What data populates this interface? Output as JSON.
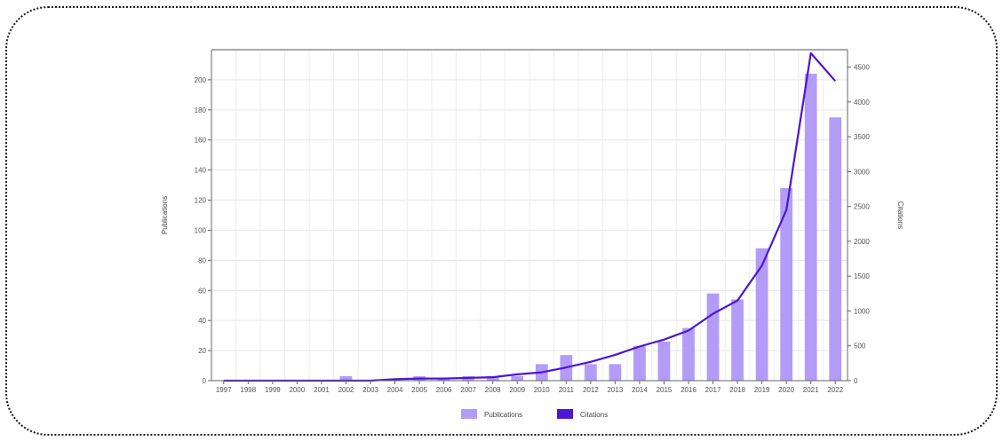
{
  "chart_data": {
    "type": "bar",
    "categories": [
      "1997",
      "1998",
      "1999",
      "2000",
      "2001",
      "2002",
      "2003",
      "2004",
      "2005",
      "2006",
      "2007",
      "2008",
      "2009",
      "2010",
      "2011",
      "2012",
      "2013",
      "2014",
      "2015",
      "2016",
      "2017",
      "2018",
      "2019",
      "2020",
      "2021",
      "2022"
    ],
    "series": [
      {
        "name": "Publications",
        "type": "bar",
        "axis": "left",
        "color": "#b39cf7",
        "values": [
          0,
          0,
          0,
          0,
          0,
          3,
          0,
          1,
          3,
          1,
          3,
          3,
          3,
          11,
          17,
          11,
          11,
          23,
          26,
          35,
          58,
          54,
          88,
          128,
          204,
          175
        ]
      },
      {
        "name": "Citations",
        "type": "line",
        "axis": "right",
        "color": "#4b16d6",
        "values": [
          0,
          0,
          0,
          0,
          0,
          0,
          0,
          20,
          30,
          30,
          40,
          50,
          90,
          120,
          190,
          270,
          370,
          490,
          590,
          720,
          960,
          1150,
          1650,
          2450,
          4700,
          4300
        ]
      }
    ],
    "ylabel": "Publications",
    "ylim": [
      0,
      220
    ],
    "yticks": [
      0,
      20,
      40,
      60,
      80,
      100,
      120,
      140,
      160,
      180,
      200
    ],
    "y2label": "Citations",
    "y2lim": [
      0,
      4750
    ],
    "y2ticks": [
      0,
      500,
      1000,
      1500,
      2000,
      2500,
      3000,
      3500,
      4000,
      4500
    ],
    "grid": true,
    "legend_position": "bottom-center"
  }
}
